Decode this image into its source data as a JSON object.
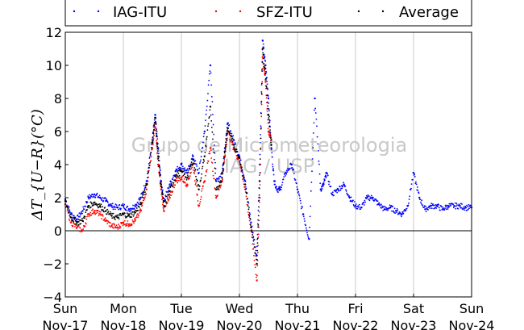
{
  "chart_data": {
    "type": "scatter",
    "ylabel": "ΔT_{U−R}(°C)",
    "ylim": [
      -4,
      12
    ],
    "yticks": [
      -4,
      -2,
      0,
      2,
      4,
      6,
      8,
      10,
      12
    ],
    "xlim": [
      "2013-11-17",
      "2013-11-24"
    ],
    "xtick_days": [
      "Sun",
      "Mon",
      "Tue",
      "Wed",
      "Thu",
      "Fri",
      "Sat",
      "Sun"
    ],
    "xtick_dates": [
      "Nov-17",
      "Nov-18",
      "Nov-19",
      "Nov-20",
      "Nov-21",
      "Nov-22",
      "Nov-23",
      "Nov-24"
    ],
    "grid": "vertical",
    "legend_placement": "top",
    "watermark": [
      "Grupo de Micrometeorologia",
      "IAG / USP"
    ],
    "series": [
      {
        "name": "IAG-ITU",
        "color": "#0000ff",
        "x_days": [
          0,
          0.1,
          0.2,
          0.3,
          0.4,
          0.5,
          0.6,
          0.7,
          0.8,
          0.9,
          1.0,
          1.1,
          1.2,
          1.3,
          1.4,
          1.5,
          1.55,
          1.6,
          1.65,
          1.7,
          1.8,
          1.9,
          2.0,
          2.1,
          2.2,
          2.3,
          2.4,
          2.5,
          2.6,
          2.7,
          2.75,
          2.8,
          2.9,
          3.0,
          3.1,
          3.2,
          3.3,
          3.35,
          3.4,
          3.45,
          3.5,
          3.55,
          3.6,
          3.65,
          3.7,
          3.8,
          3.9,
          4.0,
          4.1,
          4.2,
          4.3,
          4.4,
          4.45,
          4.5,
          4.6,
          4.7,
          4.8,
          4.9,
          5.0,
          5.1,
          5.2,
          5.3,
          5.4,
          5.5,
          5.6,
          5.7,
          5.8,
          5.9,
          6.0,
          6.1,
          6.2,
          6.3,
          6.4,
          6.5,
          6.6,
          6.7,
          6.8,
          6.9,
          7.0
        ],
        "y": [
          1.9,
          1.0,
          0.7,
          1.2,
          2.0,
          2.2,
          2.0,
          1.8,
          1.5,
          1.4,
          1.5,
          1.3,
          1.5,
          2.0,
          3.0,
          5.5,
          7.0,
          5.0,
          3.0,
          1.8,
          2.8,
          3.6,
          4.0,
          3.5,
          4.5,
          3.5,
          6.0,
          10.0,
          3.0,
          3.5,
          5.0,
          6.5,
          5.5,
          4.5,
          3.0,
          0.5,
          -1.5,
          4.0,
          11.5,
          10.0,
          8.0,
          5.0,
          3.0,
          2.5,
          2.5,
          3.5,
          4.0,
          2.5,
          1.0,
          -0.5,
          8.0,
          2.5,
          2.8,
          3.5,
          2.2,
          2.5,
          2.8,
          2.0,
          1.5,
          1.4,
          2.0,
          2.0,
          1.6,
          1.3,
          1.4,
          1.2,
          1.0,
          1.5,
          3.5,
          2.0,
          1.3,
          1.5,
          1.5,
          1.3,
          1.5,
          1.5,
          1.5,
          1.4,
          1.4
        ]
      },
      {
        "name": "SFZ-ITU",
        "color": "#ff0000",
        "x_days": [
          0,
          0.1,
          0.2,
          0.3,
          0.4,
          0.5,
          0.6,
          0.7,
          0.8,
          0.9,
          1.0,
          1.1,
          1.2,
          1.3,
          1.4,
          1.5,
          1.55,
          1.6,
          1.65,
          1.7,
          1.8,
          1.9,
          2.0,
          2.1,
          2.2,
          2.3,
          2.4,
          2.5,
          2.6,
          2.7,
          2.75,
          2.8,
          2.9,
          3.0,
          3.1,
          3.2,
          3.3,
          3.35,
          3.4,
          3.45,
          3.5,
          3.55
        ],
        "y": [
          1.6,
          0.5,
          0.2,
          0.0,
          1.0,
          1.2,
          1.0,
          0.6,
          0.3,
          0.2,
          0.5,
          0.4,
          0.6,
          1.2,
          2.5,
          5.0,
          6.5,
          4.0,
          2.5,
          1.2,
          2.0,
          3.0,
          3.2,
          2.8,
          4.0,
          1.5,
          3.0,
          5.0,
          2.0,
          3.0,
          4.5,
          6.0,
          5.0,
          4.2,
          2.5,
          0.0,
          -3.0,
          2.0,
          10.5,
          9.0,
          6.0,
          5.5
        ]
      },
      {
        "name": "Average",
        "color": "#000000",
        "x_days": [
          0,
          0.1,
          0.2,
          0.3,
          0.4,
          0.5,
          0.6,
          0.7,
          0.8,
          0.9,
          1.0,
          1.1,
          1.2,
          1.3,
          1.4,
          1.5,
          1.55,
          1.6,
          1.65,
          1.7,
          1.8,
          1.9,
          2.0,
          2.1,
          2.2,
          2.3,
          2.4,
          2.5,
          2.6,
          2.7,
          2.75,
          2.8,
          2.9,
          3.0,
          3.1,
          3.2,
          3.3,
          3.35,
          3.4,
          3.45,
          3.5,
          3.55
        ],
        "y": [
          1.8,
          0.8,
          0.5,
          0.6,
          1.5,
          1.7,
          1.5,
          1.2,
          0.9,
          0.8,
          1.0,
          0.9,
          1.1,
          1.6,
          2.8,
          5.3,
          6.8,
          4.5,
          2.8,
          1.5,
          2.4,
          3.3,
          3.6,
          3.2,
          4.3,
          2.5,
          4.5,
          7.5,
          2.5,
          3.2,
          4.8,
          6.2,
          5.2,
          4.4,
          2.8,
          0.2,
          -2.0,
          3.0,
          11.0,
          9.5,
          7.0,
          5.2
        ]
      }
    ]
  }
}
